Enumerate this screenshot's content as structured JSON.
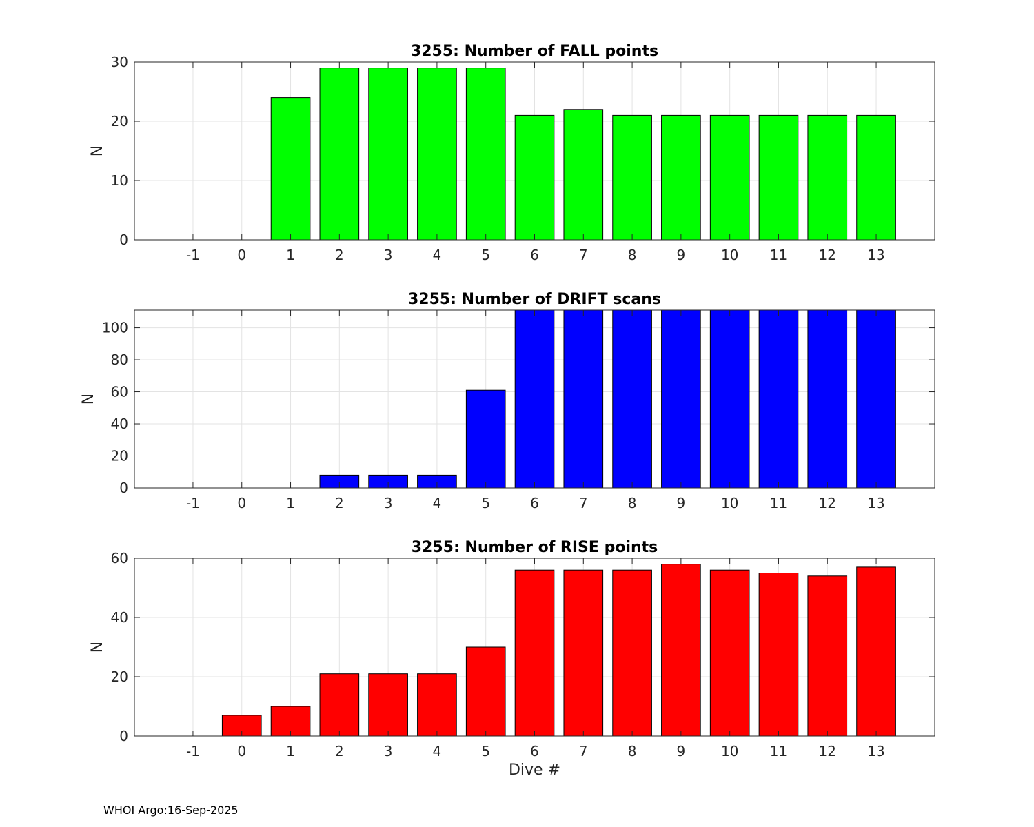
{
  "footer_text": "WHOI Argo:16-Sep-2025",
  "chart_data": [
    {
      "type": "bar",
      "title": "3255: Number of FALL points",
      "xlabel": "",
      "ylabel": "N",
      "categories": [
        -1,
        0,
        1,
        2,
        3,
        4,
        5,
        6,
        7,
        8,
        9,
        10,
        11,
        12,
        13
      ],
      "values": [
        0,
        0,
        24,
        29,
        29,
        29,
        29,
        21,
        22,
        21,
        21,
        21,
        21,
        21,
        21
      ],
      "ylim": [
        0,
        30
      ],
      "yticks": [
        0,
        10,
        20,
        30
      ],
      "color": "#00ff00",
      "grid": true
    },
    {
      "type": "bar",
      "title": "3255: Number of DRIFT scans",
      "xlabel": "",
      "ylabel": "N",
      "categories": [
        -1,
        0,
        1,
        2,
        3,
        4,
        5,
        6,
        7,
        8,
        9,
        10,
        11,
        12,
        13
      ],
      "values": [
        0,
        0,
        0,
        8,
        8,
        8,
        61,
        111,
        111,
        111,
        111,
        111,
        111,
        111,
        111
      ],
      "ylim": [
        0,
        111
      ],
      "yticks": [
        0,
        20,
        40,
        60,
        80,
        100
      ],
      "color": "#0000ff",
      "grid": true
    },
    {
      "type": "bar",
      "title": "3255: Number of RISE points",
      "xlabel": "Dive #",
      "ylabel": "N",
      "categories": [
        -1,
        0,
        1,
        2,
        3,
        4,
        5,
        6,
        7,
        8,
        9,
        10,
        11,
        12,
        13
      ],
      "values": [
        0,
        7,
        10,
        21,
        21,
        21,
        30,
        56,
        56,
        56,
        58,
        56,
        55,
        54,
        57
      ],
      "ylim": [
        0,
        60
      ],
      "yticks": [
        0,
        20,
        40,
        60
      ],
      "color": "#ff0000",
      "grid": true
    }
  ]
}
